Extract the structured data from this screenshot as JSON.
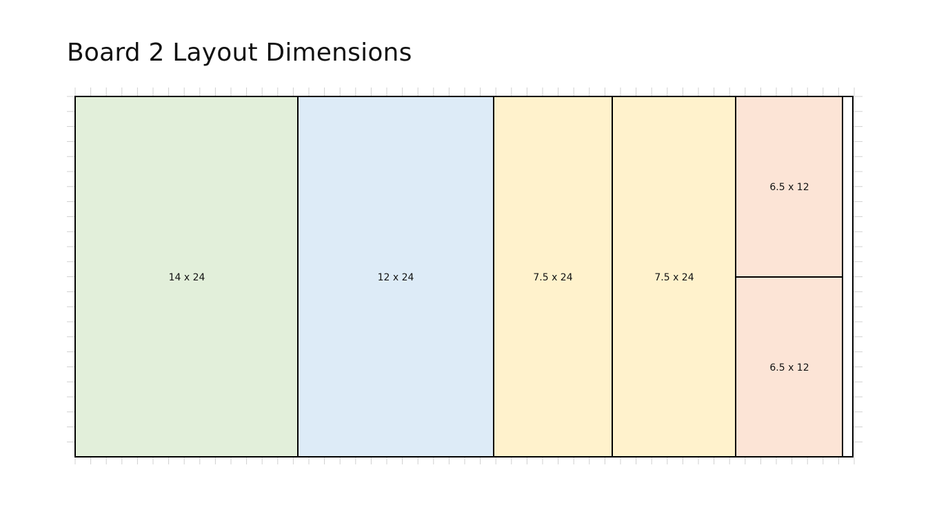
{
  "title": "Board 2 Layout Dimensions",
  "colors": {
    "green": "#e2efda",
    "blue": "#ddebf7",
    "yellow": "#fff2cc",
    "peach": "#fce4d6",
    "border": "#000000",
    "grid": "#d0d0d0"
  },
  "pieces": [
    {
      "label": "14 x 24",
      "color": "green"
    },
    {
      "label": "12 x 24",
      "color": "blue"
    },
    {
      "label": "7.5 x 24",
      "color": "yellow"
    },
    {
      "label": "7.5 x 24",
      "color": "yellow"
    },
    {
      "label": "6.5 x 12",
      "color": "peach"
    },
    {
      "label": "6.5 x 12",
      "color": "peach"
    }
  ]
}
